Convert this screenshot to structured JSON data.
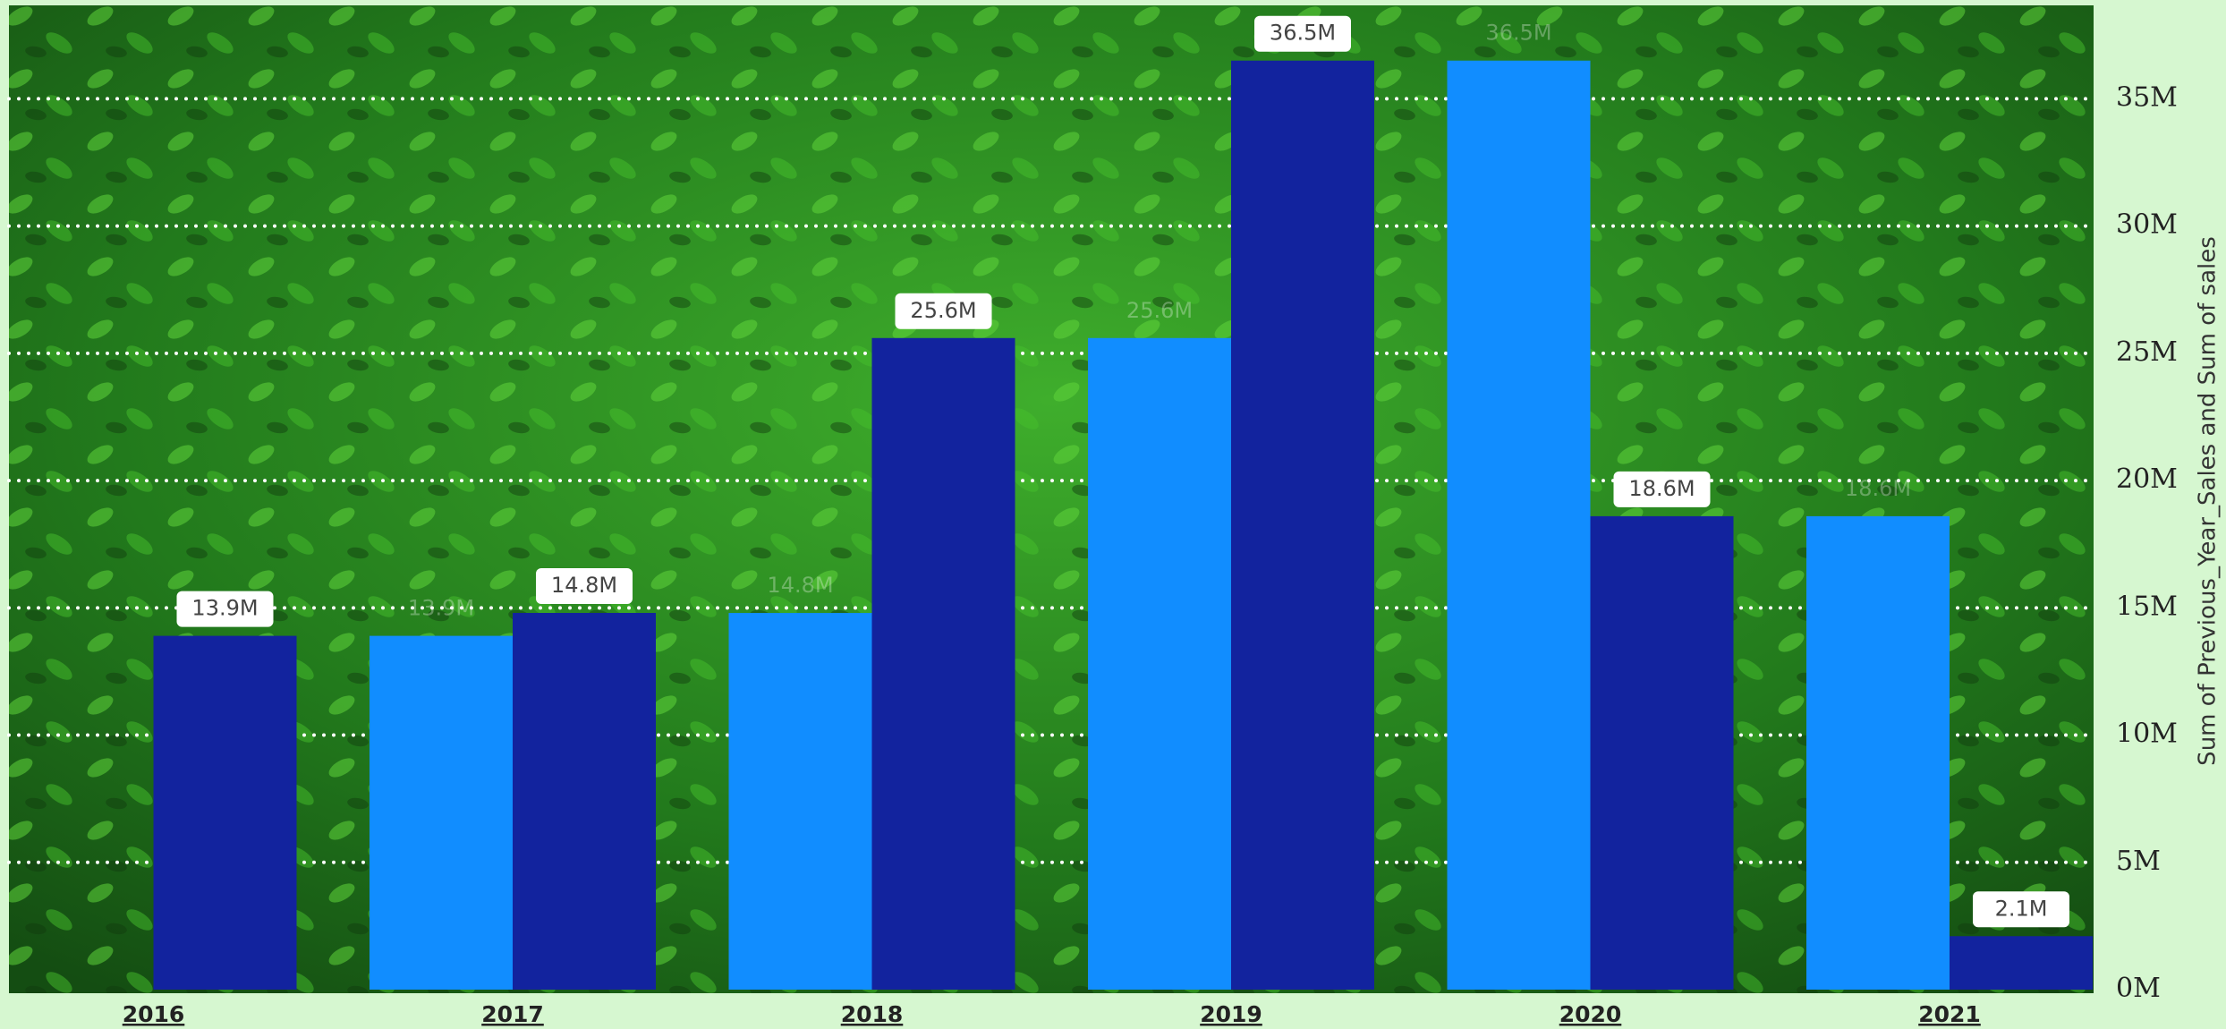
{
  "chart_data": {
    "type": "bar",
    "categories": [
      "2016",
      "2017",
      "2018",
      "2019",
      "2020",
      "2021"
    ],
    "series": [
      {
        "name": "Previous_Year_Sales",
        "color": "#118dff",
        "values": [
          null,
          13.9,
          14.8,
          25.6,
          36.5,
          18.6
        ],
        "value_labels": [
          null,
          "13.9M",
          "14.8M",
          "25.6M",
          "36.5M",
          "18.6M"
        ]
      },
      {
        "name": "Sum of sales",
        "color": "#12239e",
        "values": [
          13.9,
          14.8,
          25.6,
          36.5,
          18.6,
          2.1
        ],
        "value_labels": [
          "13.9M",
          "14.8M",
          "25.6M",
          "36.5M",
          "18.6M",
          "2.1M"
        ]
      }
    ],
    "y_axis_label": "Sum of Previous_Year_Sales and Sum of sales",
    "ylim": [
      0,
      38.6
    ],
    "yticks": [
      {
        "value": 0,
        "label": "0M"
      },
      {
        "value": 5,
        "label": "5M"
      },
      {
        "value": 10,
        "label": "10M"
      },
      {
        "value": 15,
        "label": "15M"
      },
      {
        "value": 20,
        "label": "20M"
      },
      {
        "value": 25,
        "label": "25M"
      },
      {
        "value": 30,
        "label": "30M"
      },
      {
        "value": 35,
        "label": "35M"
      }
    ],
    "grid": true
  }
}
